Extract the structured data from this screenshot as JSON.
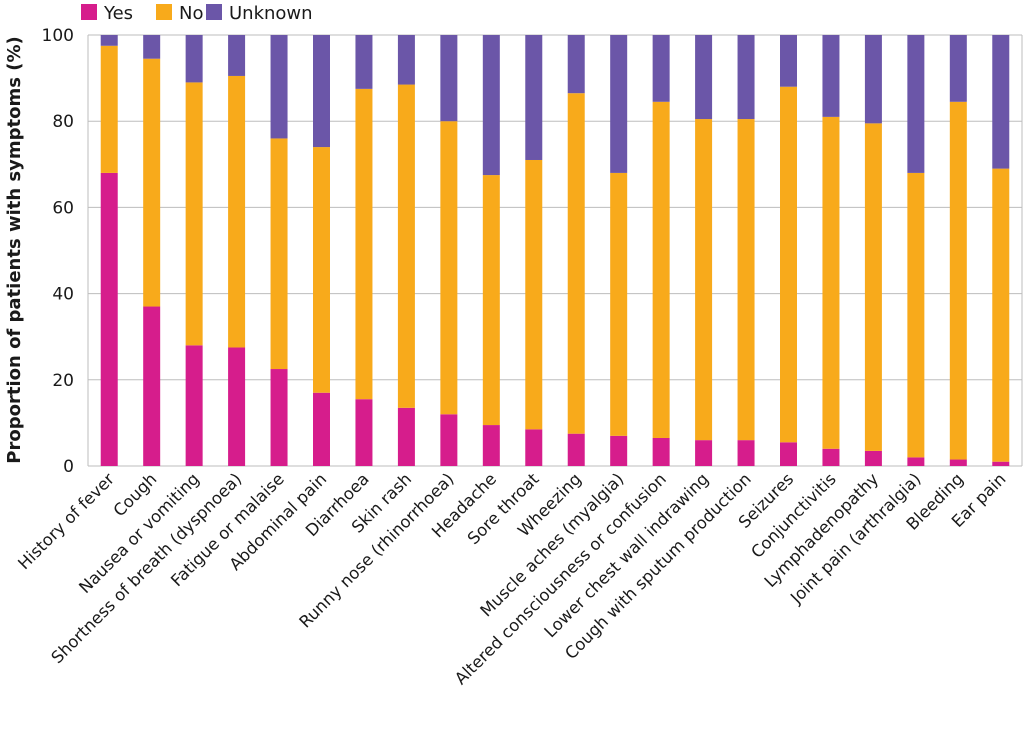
{
  "chart_data": {
    "type": "bar",
    "stacked": true,
    "ylabel": "Proportion of patients with symptoms (%)",
    "ylim": [
      0,
      100
    ],
    "yticks": [
      0,
      20,
      40,
      60,
      80,
      100
    ],
    "grid": true,
    "legend_position": "top-left",
    "categories": [
      "History of fever",
      "Cough",
      "Nausea or vomiting",
      "Shortness of breath (dyspnoea)",
      "Fatigue or malaise",
      "Abdominal pain",
      "Diarrhoea",
      "Skin rash",
      "Runny nose (rhinorrhoea)",
      "Headache",
      "Sore throat",
      "Wheezing",
      "Muscle aches (myalgia)",
      "Altered consciousness or confusion",
      "Lower chest wall indrawing",
      "Cough with sputum production",
      "Seizures",
      "Conjunctivitis",
      "Lymphadenopathy",
      "Joint pain (arthralgia)",
      "Bleeding",
      "Ear pain"
    ],
    "series": [
      {
        "name": "Yes",
        "color": "#d61d8c",
        "values": [
          68,
          37,
          28,
          27.5,
          22.5,
          17,
          15.5,
          13.5,
          12,
          9.5,
          8.5,
          7.5,
          7,
          6.5,
          6,
          6,
          5.5,
          4,
          3.5,
          2,
          1.5,
          1
        ]
      },
      {
        "name": "No",
        "color": "#f8aa1b",
        "values": [
          29.5,
          57.5,
          61,
          63,
          53.5,
          57,
          72,
          75,
          68,
          58,
          62.5,
          79,
          61,
          78,
          74.5,
          74.5,
          82.5,
          77,
          76,
          66,
          83,
          68
        ]
      },
      {
        "name": "Unknown",
        "color": "#6b56a8",
        "values": [
          2.5,
          5.5,
          11,
          9.5,
          24,
          26,
          12.5,
          11.5,
          20,
          32.5,
          29,
          13.5,
          32,
          15.5,
          19.5,
          19.5,
          12,
          19,
          20.5,
          32,
          15.5,
          31
        ]
      }
    ]
  }
}
